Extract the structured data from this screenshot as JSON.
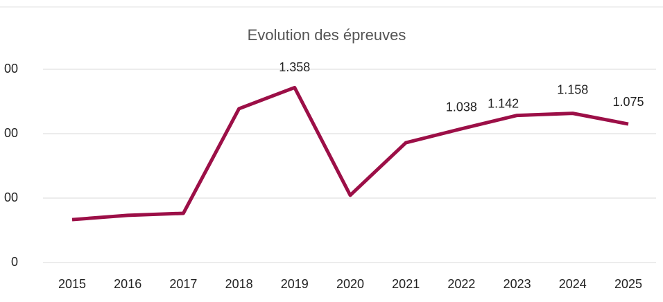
{
  "chart_data": {
    "type": "line",
    "title": "Evolution des épreuves",
    "categories": [
      "2015",
      "2016",
      "2017",
      "2018",
      "2019",
      "2020",
      "2021",
      "2022",
      "2023",
      "2024",
      "2025"
    ],
    "series": [
      {
        "color": "#9c0f47",
        "values": [
          333,
          366,
          382,
          1194,
          1358,
          522,
          930,
          1038,
          1142,
          1158,
          1075
        ],
        "value_labels": [
          null,
          null,
          null,
          null,
          "1.358",
          null,
          null,
          "1.038",
          "1.142",
          "1.158",
          "1.075"
        ]
      }
    ],
    "ylim": [
      0,
      1500
    ],
    "yticks": [
      {
        "value": 0,
        "label": "0"
      },
      {
        "value": 500,
        "label": "00"
      },
      {
        "value": 1000,
        "label": "00"
      },
      {
        "value": 1500,
        "label": "00"
      }
    ],
    "grid": true
  }
}
